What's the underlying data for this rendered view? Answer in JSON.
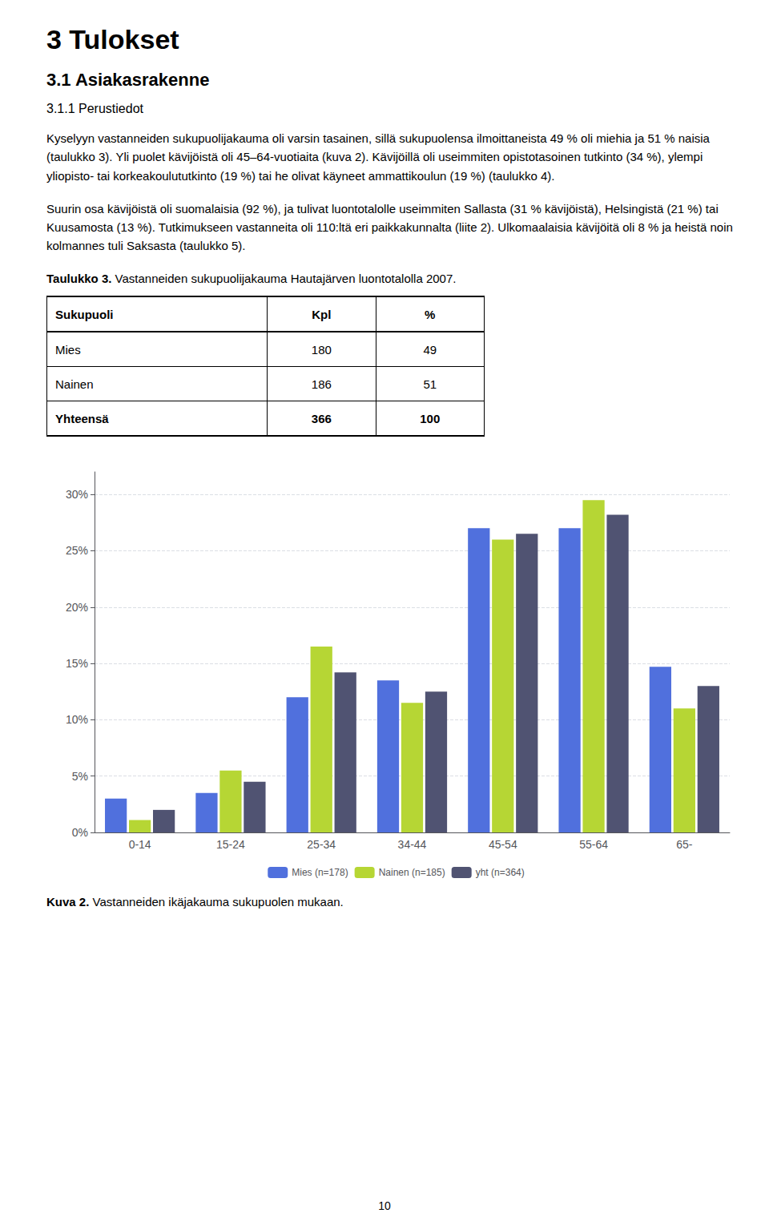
{
  "chart_data": [
    {
      "type": "table",
      "title": "Taulukko 3. Vastanneiden sukupuolijakauma Hautajärven luontotalolla 2007.",
      "columns": [
        "Sukupuoli",
        "Kpl",
        "%"
      ],
      "rows": [
        [
          "Mies",
          180,
          49
        ],
        [
          "Nainen",
          186,
          51
        ],
        [
          "Yhteensä",
          366,
          100
        ]
      ]
    },
    {
      "type": "bar",
      "title": "Kuva 2. Vastanneiden ikäjakauma sukupuolen mukaan.",
      "annotations": [
        "3 Tulokset",
        "3.1 Asiakasrakenne",
        "3.1.1 Perustiedot",
        "Kyselyyn vastanneiden sukupuolijakauma oli varsin tasainen, sillä sukupuolensa ilmoittaneista 49 % oli miehia ja 51 % naisia (taulukko 3). Yli puolet kävijöistä oli 45–64-vuotiaita (kuva 2). Kävijöillä oli useimmiten opistotasoinen tutkinto (34 %), ylempi yliopisto- tai korkeakoulututkinto (19 %) tai he olivat käyneet ammattikoulun (19 %) (taulukko 4).",
        "Suurin osa kävijöistä oli suomalaisia (92 %), ja tulivat luontotalolle useimmiten Sallasta (31 % kävijöistä), Helsingistä (21 %) tai Kuusamosta (13 %). Tutkimukseen vastanneita oli 110:ltä eri paikkakunnalta (liite 2). Ulkomaalaisia kävijöitä oli 8 % ja heistä noin kolmannes tuli Saksasta (taulukko 5).",
        "10"
      ],
      "categories": [
        "0-14",
        "15-24",
        "25-34",
        "34-44",
        "45-54",
        "55-64",
        "65-"
      ],
      "series": [
        {
          "name": "Mies (n=178)",
          "values": [
            3.0,
            3.5,
            12.0,
            13.5,
            27.0,
            27.0,
            14.7
          ]
        },
        {
          "name": "Nainen (n=185)",
          "values": [
            1.1,
            5.5,
            16.5,
            11.5,
            26.0,
            29.5,
            11.0
          ]
        },
        {
          "name": "yht (n=364)",
          "values": [
            2.0,
            4.5,
            14.2,
            12.5,
            26.5,
            28.2,
            13.0
          ]
        }
      ],
      "ylim": [
        0,
        32
      ],
      "yticks": [
        {
          "value": 0,
          "label": "0%"
        },
        {
          "value": 5,
          "label": "5%"
        },
        {
          "value": 10,
          "label": "10%"
        },
        {
          "value": 15,
          "label": "15%"
        },
        {
          "value": 20,
          "label": "20%"
        },
        {
          "value": 25,
          "label": "25%"
        },
        {
          "value": 30,
          "label": "30%"
        }
      ],
      "grid": true,
      "legend": "bottom"
    }
  ]
}
